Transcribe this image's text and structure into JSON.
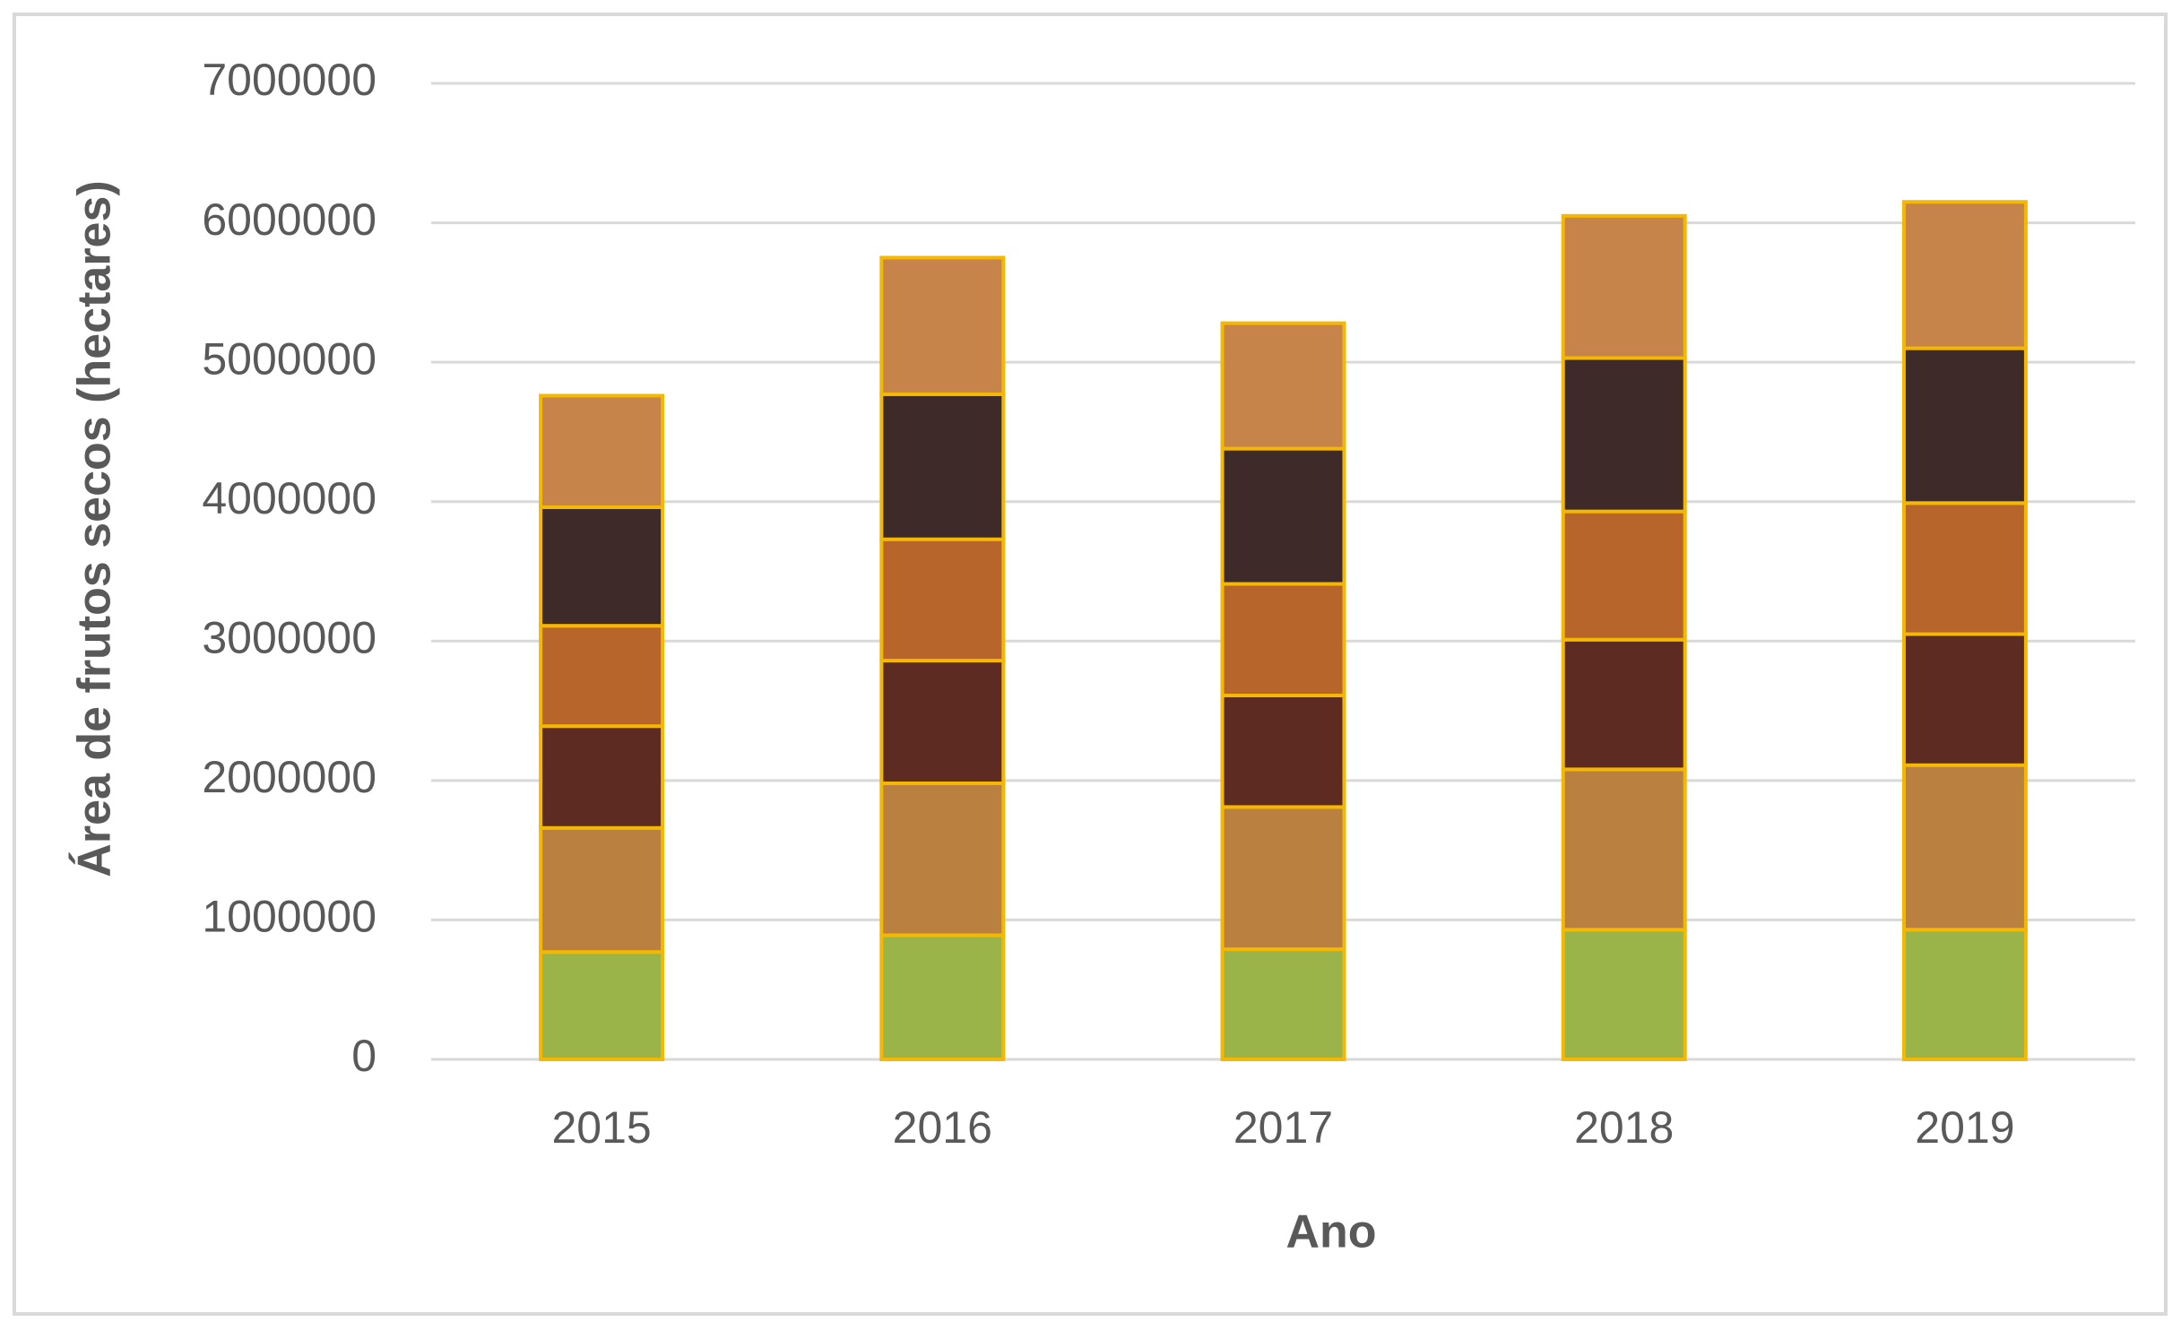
{
  "chart_data": {
    "type": "bar",
    "stacked": true,
    "x_label": "Ano",
    "y_label": "Área de frutos secos (hectares)",
    "categories": [
      "2015",
      "2016",
      "2017",
      "2018",
      "2019"
    ],
    "series": [
      {
        "color": "#9bb44a",
        "values": [
          770000,
          890000,
          790000,
          930000,
          930000
        ]
      },
      {
        "color": "#b9803f",
        "values": [
          890000,
          1090000,
          1020000,
          1150000,
          1180000
        ]
      },
      {
        "color": "#5e2b22",
        "values": [
          730000,
          880000,
          800000,
          930000,
          940000
        ]
      },
      {
        "color": "#b8652c",
        "values": [
          720000,
          870000,
          800000,
          920000,
          940000
        ]
      },
      {
        "color": "#3e2a28",
        "values": [
          850000,
          1040000,
          970000,
          1100000,
          1110000
        ]
      },
      {
        "color": "#c6844a",
        "values": [
          800000,
          980000,
          900000,
          1020000,
          1050000
        ]
      }
    ],
    "ylim": [
      0,
      7000000
    ],
    "yticks": [
      0,
      1000000,
      2000000,
      3000000,
      4000000,
      5000000,
      6000000,
      7000000
    ],
    "grid": true
  }
}
